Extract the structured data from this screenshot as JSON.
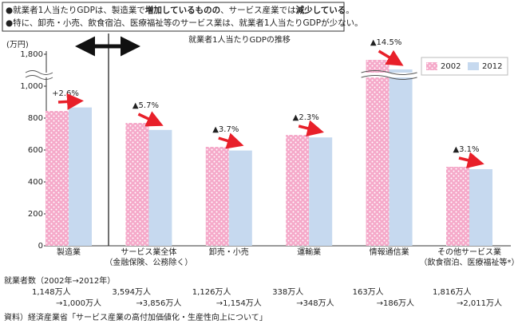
{
  "header": {
    "lines": [
      [
        {
          "text": "●就業者1人当たりGDPは、製造業で"
        },
        {
          "text": "増加しているものの",
          "bold": true
        },
        {
          "text": "、サービス産業では"
        },
        {
          "text": "減少している",
          "bold": true
        },
        {
          "text": "。"
        }
      ],
      [
        {
          "text": "●特に、卸売・小売、飲食宿泊、医療福祉等のサービス業は、就業者1人当たりGDPが少ない。"
        }
      ]
    ]
  },
  "chart_data": {
    "type": "bar",
    "title": "就業者1人当たりGDPの推移",
    "y_label": "(万円)",
    "categories": [
      "製造業",
      "サービス業全体",
      "卸売・小売",
      "運輸業",
      "情報通信業",
      "その他サービス業"
    ],
    "category_notes": [
      null,
      "（金融保険、公務除く）",
      null,
      null,
      null,
      "（飲食宿泊、医療福祉等*）"
    ],
    "series": [
      {
        "name": "2002",
        "color": "#f5a9c9",
        "values": [
          845,
          770,
          620,
          695,
          1660,
          495
        ]
      },
      {
        "name": "2012",
        "color": "#c6d9ef",
        "values": [
          867,
          726,
          597,
          679,
          1420,
          480
        ]
      }
    ],
    "annotations": [
      "+2.6%",
      "▲5.7%",
      "▲3.7%",
      "▲2.3%",
      "▲14.5%",
      "▲3.1%"
    ],
    "ylim": [
      0,
      1800
    ],
    "yticks": [
      0,
      200,
      400,
      600,
      800,
      {
        "value": 1000,
        "label": "1,000"
      },
      {
        "value": 1800,
        "label": "1,800"
      }
    ],
    "axis_break": true,
    "legend": "top-right"
  },
  "employment": {
    "title": "就業者数（2002年→2012年）",
    "from": [
      "1,148万人",
      "3,594万人",
      "1,126万人",
      "338万人",
      "163万人",
      "1,816万人"
    ],
    "to": [
      "→1,000万人",
      "→3,856万人",
      "→1,154万人",
      "→348万人",
      "→186万人",
      "→2,011万人"
    ]
  },
  "source": "資料）経済産業省「サービス産業の高付加価値化・生産性向上について」"
}
